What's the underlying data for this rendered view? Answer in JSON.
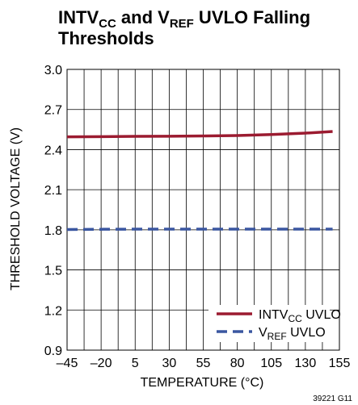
{
  "chart_data": {
    "type": "line",
    "title": {
      "line1": {
        "main": "INTV",
        "sub": "CC",
        "mid": " and V",
        "sub2": "REF",
        "tail": " UVLO Falling"
      },
      "line2": "Thresholds"
    },
    "xlabel": "TEMPERATURE (°C)",
    "ylabel": "THRESHOLD VOLTAGE (V)",
    "xlim": [
      -45,
      155
    ],
    "ylim": [
      0.9,
      3.0
    ],
    "x_ticks": [
      -45,
      -20,
      5,
      30,
      55,
      80,
      105,
      130,
      155
    ],
    "x_tick_labels": [
      "–45",
      "–20",
      "5",
      "30",
      "55",
      "80",
      "105",
      "130",
      "155"
    ],
    "y_ticks": [
      0.9,
      1.2,
      1.5,
      1.8,
      2.1,
      2.4,
      2.7,
      3.0
    ],
    "y_tick_labels": [
      "0.9",
      "1.2",
      "1.5",
      "1.8",
      "2.1",
      "2.4",
      "2.7",
      "3.0"
    ],
    "x_minor_step": 12.5,
    "grid": true,
    "legend_position": "bottom-right",
    "series": [
      {
        "name": {
          "main": "INTV",
          "sub": "CC",
          "tail": " UVLO"
        },
        "color": "#9b1b30",
        "style": "solid",
        "x": [
          -45,
          -20,
          5,
          30,
          55,
          80,
          105,
          130,
          150
        ],
        "y": [
          2.495,
          2.497,
          2.499,
          2.5,
          2.502,
          2.505,
          2.513,
          2.523,
          2.535
        ]
      },
      {
        "name": {
          "main": "V",
          "sub": "REF",
          "tail": " UVLO"
        },
        "color": "#3a56a0",
        "style": "dashed",
        "x": [
          -45,
          -20,
          5,
          30,
          55,
          80,
          105,
          130,
          150
        ],
        "y": [
          1.802,
          1.804,
          1.805,
          1.805,
          1.805,
          1.805,
          1.805,
          1.805,
          1.805
        ]
      }
    ],
    "figure_code": "39221 G11"
  }
}
